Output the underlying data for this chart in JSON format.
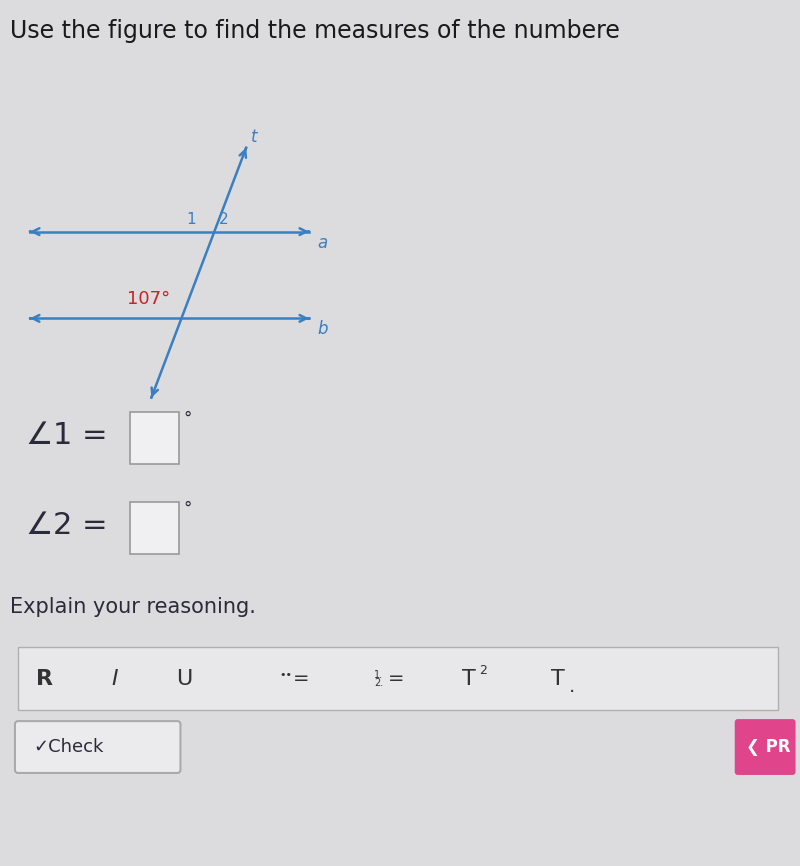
{
  "title": "Use the figure to find the measures of the numbere",
  "title_fontsize": 17,
  "title_color": "#1a1a1a",
  "bg_color": "#dcdcde",
  "line_color": "#3a7fc1",
  "angle_label_color": "#cc2222",
  "text_color": "#2a2a3a",
  "figure_width": 8.0,
  "figure_height": 8.66,
  "angle_label": "107°",
  "label_1": "1",
  "label_2": "2",
  "label_t": "t",
  "label_a": "a",
  "label_b": "b",
  "box_color": "#f0f0f2",
  "box_edge_color": "#999999",
  "explain_text": "Explain your reasoning.",
  "check_button_text": "✓Check",
  "check_button_color": "#e0448a",
  "toolbar_bg": "#e8e8ea",
  "toolbar_border": "#b0b0b0"
}
